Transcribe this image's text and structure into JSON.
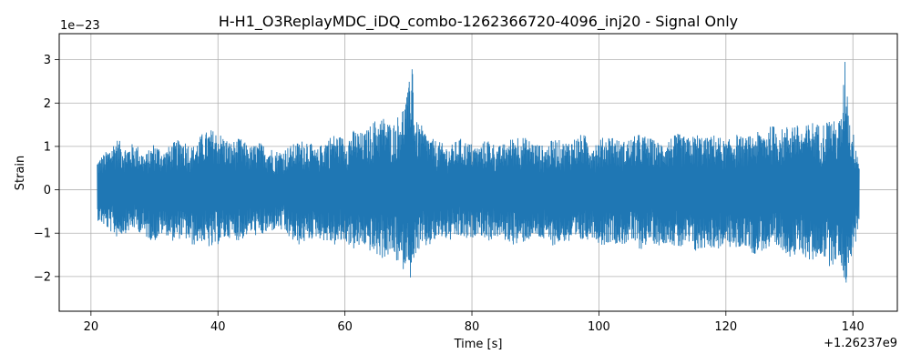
{
  "chart_data": {
    "type": "line",
    "title": "H-H1_O3ReplayMDC_iDQ_combo-1262366720-4096_inj20 - Signal Only",
    "xlabel": "Time [s]",
    "ylabel": "Strain",
    "x_offset_label": "+1.26237e9",
    "y_scale_label": "1e−23",
    "xlim": [
      15,
      147
    ],
    "ylim": [
      -2.8,
      3.6
    ],
    "x_ticks": [
      20,
      40,
      60,
      80,
      100,
      120,
      140
    ],
    "x_tick_labels": [
      "20",
      "40",
      "60",
      "80",
      "100",
      "120",
      "140"
    ],
    "y_ticks": [
      -2,
      -1,
      0,
      1,
      2,
      3
    ],
    "y_tick_labels": [
      "−2",
      "−1",
      "0",
      "1",
      "2",
      "3"
    ],
    "grid": true,
    "line_color": "#1f77b4",
    "series": [
      {
        "x": [
          21.0,
          22.5,
          24.0,
          25.5,
          27.0,
          28.5,
          30.0,
          31.5,
          33.0,
          34.5,
          36.0,
          37.5,
          39.0,
          40.5,
          42.0,
          43.5,
          45.0,
          46.5,
          48.0,
          49.5,
          51.0,
          52.5,
          54.0,
          55.5,
          57.0,
          58.5,
          60.0,
          61.5,
          63.0,
          64.5,
          66.0,
          67.5,
          69.0,
          70.0,
          70.6,
          71.0,
          72.0,
          73.5,
          75.0,
          76.5,
          78.0,
          79.5,
          81.0,
          82.5,
          84.0,
          85.5,
          87.0,
          88.5,
          90.0,
          91.5,
          93.0,
          94.5,
          96.0,
          97.5,
          99.0,
          100.5,
          102.0,
          103.5,
          105.0,
          106.5,
          108.0,
          109.5,
          111.0,
          112.5,
          114.0,
          115.5,
          117.0,
          118.5,
          120.0,
          121.5,
          123.0,
          124.5,
          126.0,
          127.5,
          129.0,
          130.5,
          132.0,
          133.5,
          135.0,
          136.5,
          137.5,
          138.3,
          138.8,
          139.5,
          140.5,
          141.0
        ],
        "y_upper": [
          0.7,
          0.9,
          1.2,
          1.0,
          1.1,
          0.8,
          1.1,
          0.9,
          1.1,
          1.2,
          1.0,
          1.3,
          1.4,
          1.3,
          1.1,
          1.2,
          1.0,
          1.1,
          1.0,
          0.9,
          1.0,
          1.1,
          1.2,
          0.9,
          1.2,
          1.3,
          1.2,
          1.4,
          1.3,
          1.6,
          1.7,
          1.5,
          1.9,
          2.3,
          3.35,
          1.6,
          1.5,
          1.2,
          1.1,
          1.0,
          1.2,
          1.1,
          1.0,
          1.2,
          1.0,
          1.1,
          1.3,
          1.2,
          1.1,
          1.0,
          1.2,
          1.1,
          1.2,
          1.3,
          1.1,
          1.2,
          1.3,
          1.1,
          1.2,
          1.3,
          1.2,
          1.1,
          1.2,
          1.3,
          1.2,
          1.3,
          1.2,
          1.3,
          1.1,
          1.3,
          1.2,
          1.3,
          1.4,
          1.5,
          1.4,
          1.6,
          1.4,
          1.6,
          1.5,
          1.7,
          1.5,
          1.8,
          3.25,
          1.6,
          1.1,
          0.7
        ],
        "y_lower": [
          -0.7,
          -0.9,
          -1.1,
          -1.0,
          -0.9,
          -1.1,
          -1.2,
          -1.0,
          -1.2,
          -1.1,
          -1.3,
          -1.2,
          -1.4,
          -1.2,
          -1.1,
          -1.2,
          -1.0,
          -1.1,
          -1.0,
          -0.9,
          -1.1,
          -1.3,
          -1.2,
          -1.1,
          -1.2,
          -1.3,
          -1.2,
          -1.4,
          -1.3,
          -1.5,
          -1.6,
          -1.5,
          -1.9,
          -1.6,
          -2.5,
          -1.5,
          -1.4,
          -1.3,
          -1.1,
          -1.2,
          -1.1,
          -1.2,
          -1.0,
          -1.2,
          -1.1,
          -1.2,
          -1.3,
          -1.2,
          -1.1,
          -1.2,
          -1.3,
          -1.2,
          -1.3,
          -1.2,
          -1.1,
          -1.3,
          -1.2,
          -1.3,
          -1.2,
          -1.4,
          -1.2,
          -1.3,
          -1.2,
          -1.4,
          -1.3,
          -1.5,
          -1.3,
          -1.4,
          -1.3,
          -1.4,
          -1.3,
          -1.5,
          -1.4,
          -1.5,
          -1.4,
          -1.6,
          -1.5,
          -1.7,
          -1.5,
          -1.8,
          -1.6,
          -1.8,
          -2.3,
          -1.7,
          -1.2,
          -0.7
        ]
      }
    ]
  }
}
